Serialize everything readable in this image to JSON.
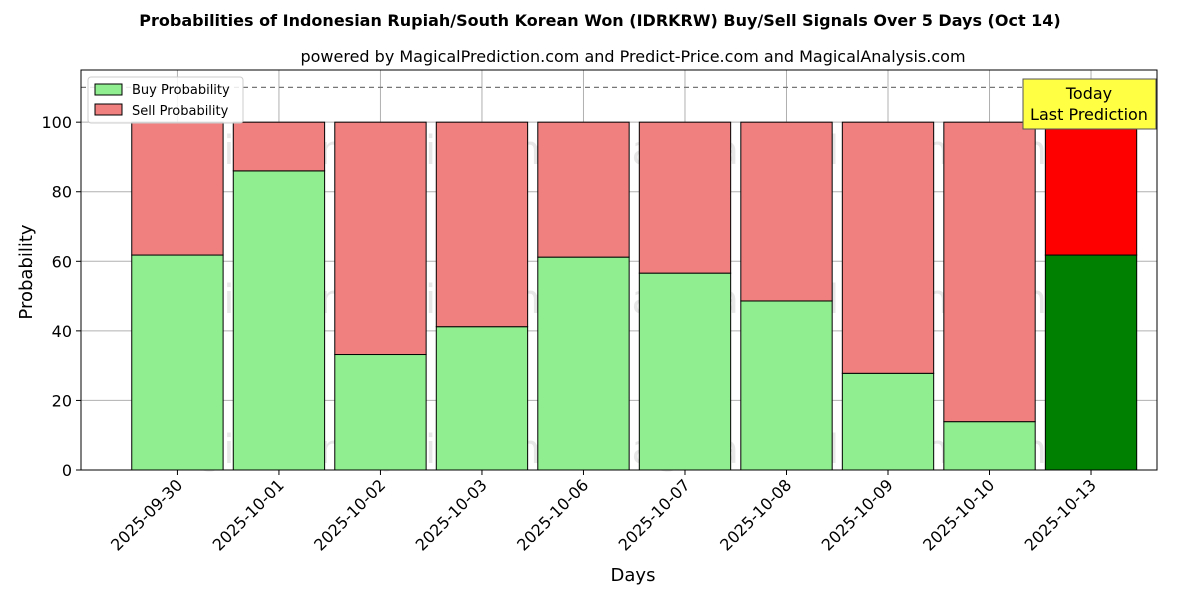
{
  "chart_data": {
    "type": "bar",
    "stacked": true,
    "title": "Probabilities of Indonesian Rupiah/South Korean Won (IDRKRW) Buy/Sell Signals Over 5 Days (Oct 14)",
    "subtitle": "powered by MagicalPrediction.com and Predict-Price.com and MagicalAnalysis.com",
    "xlabel": "Days",
    "ylabel": "Probability",
    "ylim": [
      0,
      115
    ],
    "yticks": [
      "0",
      "20",
      "40",
      "60",
      "80",
      "100"
    ],
    "reference_line": 110,
    "grid": true,
    "legend_position": "top-left",
    "categories": [
      "2025-09-30",
      "2025-10-01",
      "2025-10-02",
      "2025-10-03",
      "2025-10-06",
      "2025-10-07",
      "2025-10-08",
      "2025-10-09",
      "2025-10-10",
      "2025-10-13"
    ],
    "series": [
      {
        "name": "Buy Probability",
        "color": "#90ee90",
        "highlight_color": "#008000",
        "values": [
          61.8,
          86.0,
          33.2,
          41.2,
          61.2,
          56.6,
          48.6,
          27.8,
          13.9,
          61.8
        ]
      },
      {
        "name": "Sell Probability",
        "color": "#f08080",
        "highlight_color": "#ff0000",
        "values": [
          38.2,
          14.0,
          66.8,
          58.8,
          38.8,
          43.4,
          51.4,
          72.2,
          86.1,
          38.2
        ]
      }
    ],
    "highlight_index": 9,
    "annotation": {
      "line1": "Today",
      "line2": "Last Prediction",
      "color": "#ffff44"
    },
    "watermarks": [
      "MagicalAnalysis.com",
      "MagicalPrediction.com"
    ]
  }
}
